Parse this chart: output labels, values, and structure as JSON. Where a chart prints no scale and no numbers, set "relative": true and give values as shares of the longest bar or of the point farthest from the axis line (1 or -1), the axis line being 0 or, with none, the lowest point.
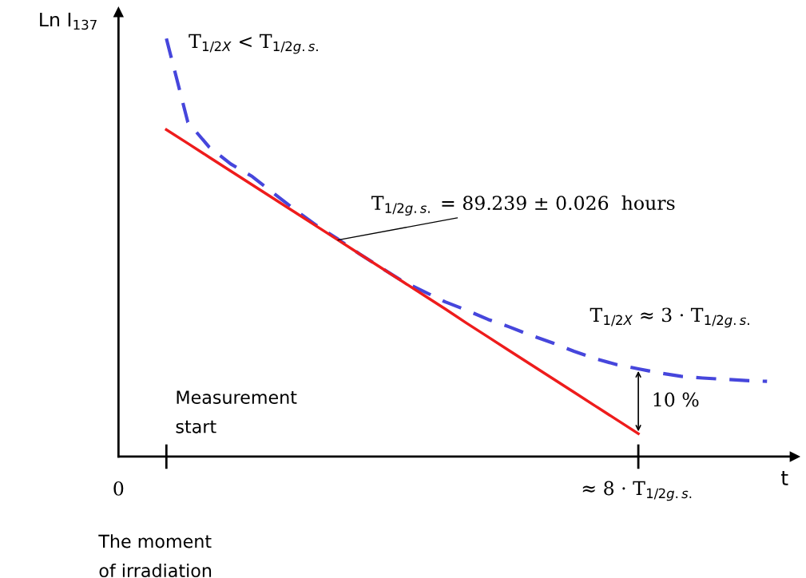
{
  "chart_data": {
    "type": "line",
    "relative": true,
    "ylabel": "Ln I$_{137}$",
    "xlabel": "t",
    "categories": [
      null,
      null,
      null,
      null,
      null,
      null,
      null,
      null,
      null,
      null,
      null,
      null,
      null,
      null,
      null,
      null,
      null,
      null,
      null,
      null,
      null,
      null,
      null,
      null,
      null,
      null,
      null,
      null,
      null
    ],
    "series": [
      {
        "color": "#4646dc",
        "line_style": "dashed",
        "values": [
          1.0,
          0.8,
          0.74,
          0.7,
          0.67,
          0.63,
          0.59,
          0.553,
          0.52,
          0.485,
          0.452,
          0.42,
          0.395,
          0.37,
          0.35,
          0.328,
          0.31,
          0.29,
          0.272,
          0.252,
          0.234,
          0.22,
          0.21,
          0.2,
          0.192,
          0.188,
          0.185,
          0.182,
          0.18
        ]
      },
      {
        "color": "#ee1c1c",
        "line_style": "solid",
        "values": [
          0.782,
          0.749,
          0.716,
          0.683,
          0.65,
          0.617,
          0.584,
          0.551,
          0.518,
          0.485,
          0.452,
          0.419,
          0.386,
          0.353,
          0.319,
          0.286,
          0.253,
          0.22,
          0.187,
          0.154,
          0.121,
          0.088,
          0.055,
          null,
          null,
          null,
          null,
          null,
          null
        ]
      }
    ],
    "annotations": [
      "T$_{1/2X}$ < T$_{1/2g.s.}$",
      "T$_{1/2g.s.}$ = 89.239 ± 0.026  hours",
      "T$_{1/2X}$ ≈ 3 · T$_{1/2g.s.}$",
      "10 %",
      "Measurement\nstart",
      "The moment\nof irradiation",
      "0",
      "≈ 8 · T$_{1/2g.s.}$"
    ]
  }
}
